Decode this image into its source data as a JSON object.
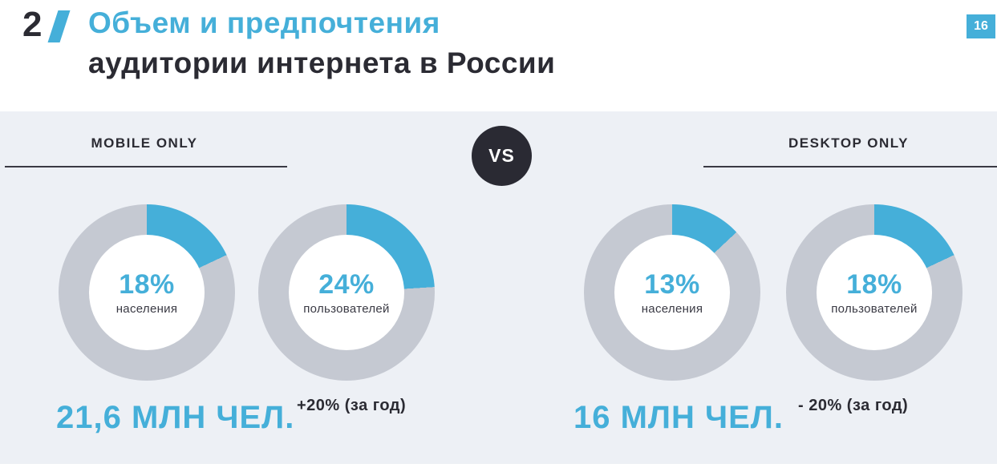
{
  "slide": {
    "number": "2",
    "title_line1": "Объем и предпочтения",
    "title_line2": "аудитории интернета в России",
    "page_number": "16",
    "vs_label": "VS"
  },
  "colors": {
    "accent_blue": "#45afd9",
    "ring_gray": "#c5c9d2",
    "dark": "#2b2b33",
    "panel_bg": "#edf0f5"
  },
  "chart_data": {
    "type": "pie",
    "subtype": "donut",
    "title": "Объем и предпочтения аудитории интернета в России",
    "legend_position": "none",
    "groups": [
      {
        "heading": "MOBILE ONLY",
        "donuts": [
          {
            "percent": 18,
            "percent_label": "18%",
            "label": "населения"
          },
          {
            "percent": 24,
            "percent_label": "24%",
            "label": "пользователей"
          }
        ],
        "total": "21,6 МЛН ЧЕЛ.",
        "change": "+20% (за год)"
      },
      {
        "heading": "DESKTOP ONLY",
        "donuts": [
          {
            "percent": 13,
            "percent_label": "13%",
            "label": "населения"
          },
          {
            "percent": 18,
            "percent_label": "18%",
            "label": "пользователей"
          }
        ],
        "total": "16 МЛН ЧЕЛ.",
        "change": "- 20% (за год)"
      }
    ]
  }
}
